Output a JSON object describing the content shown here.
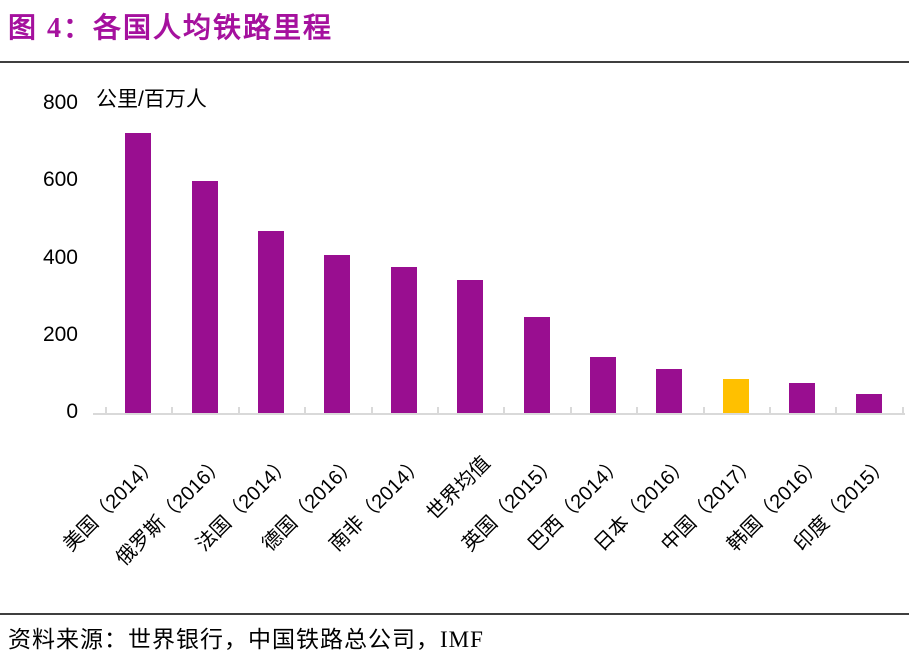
{
  "page": {
    "title": "图 4：各国人均铁路里程",
    "source_note": "资料来源：世界银行，中国铁路总公司，IMF"
  },
  "colors": {
    "title_accent": "#A5119E",
    "bar": "#990E90",
    "highlight_bar": "#FFC000",
    "axis": "#D9D9D9",
    "divider": "#3F3F3F",
    "text": "#000000"
  },
  "chart_data": {
    "type": "bar",
    "title": "各国人均铁路里程",
    "xlabel": "",
    "ylabel": "公里/百万人",
    "categories": [
      "美国（2014）",
      "俄罗斯（2016）",
      "法国（2014）",
      "德国（2016）",
      "南非（2014）",
      "世界均值",
      "英国（2015）",
      "巴西（2014）",
      "日本（2016）",
      "中国（2017）",
      "韩国（2016）",
      "印度（2015）"
    ],
    "values": [
      725,
      600,
      470,
      410,
      378,
      345,
      248,
      145,
      115,
      88,
      78,
      50
    ],
    "highlight_index": 9,
    "highlight_note": "中国（2017）柱为黄色高亮",
    "ylim": [
      0,
      800
    ],
    "yticks": [
      0,
      200,
      400,
      600,
      800
    ],
    "grid": false,
    "legend": false,
    "xtick_rotation": 45
  }
}
